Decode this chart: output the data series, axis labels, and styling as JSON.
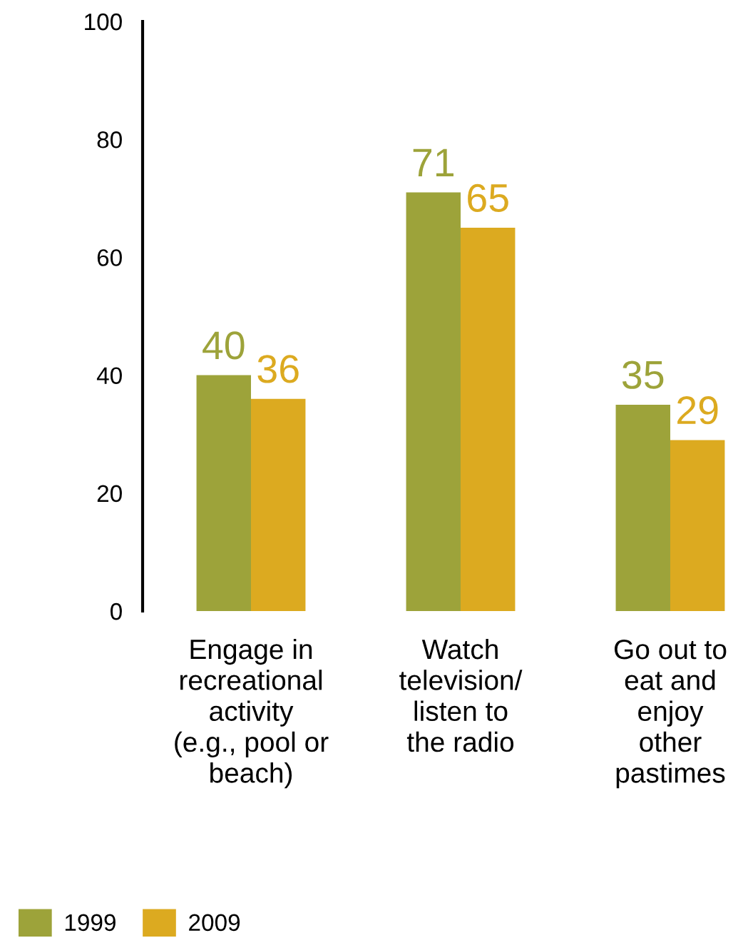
{
  "chart_data": {
    "type": "bar",
    "categories": [
      "Engage in\nrecreational\nactivity\n(e.g., pool or\nbeach)",
      "Watch\ntelevision/\nlisten to\nthe radio",
      "Go out to\neat and\nenjoy\nother\npastimes"
    ],
    "series": [
      {
        "name": "1999",
        "color": "#9da33a",
        "values": [
          40,
          71,
          35
        ]
      },
      {
        "name": "2009",
        "color": "#dcaa20",
        "values": [
          36,
          65,
          29
        ]
      }
    ],
    "ylim": [
      0,
      100
    ],
    "yticks": [
      0,
      20,
      40,
      60,
      80,
      100
    ],
    "grid": false,
    "legend": "bottom left",
    "data_labels": true
  }
}
